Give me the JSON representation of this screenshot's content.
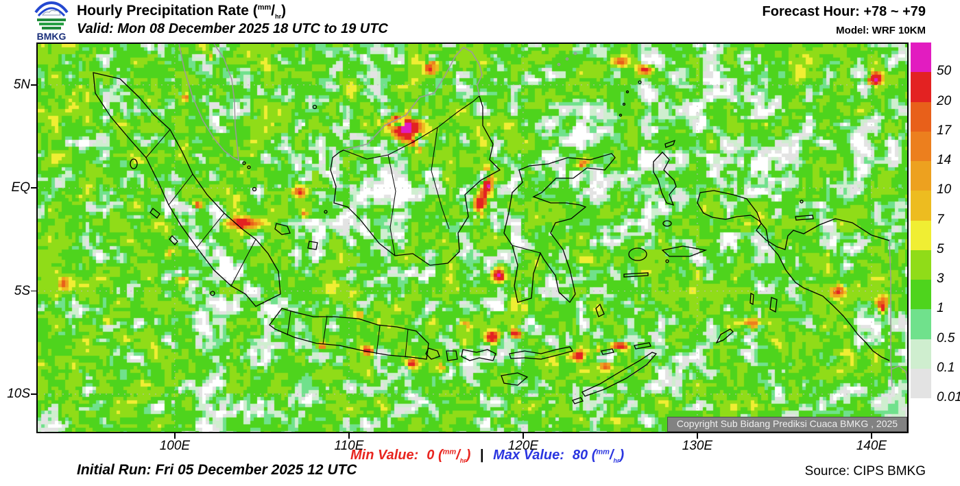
{
  "header": {
    "logo_text": "BMKG",
    "title": "Hourly Precipitation Rate",
    "valid": "Valid: Mon 08 December 2025 18 UTC to 19 UTC",
    "forecast_hour": "Forecast Hour: +78 ~ +79",
    "model": "Model: WRF 10KM"
  },
  "unit": {
    "open": "(",
    "num": "mm",
    "slash": "/",
    "den": "hr",
    "close": ")"
  },
  "map": {
    "lon_range": [
      92.13,
      142.05
    ],
    "lat_range": [
      -11.83,
      6.99
    ],
    "x_ticks": [
      {
        "label": "100E",
        "lon": 100
      },
      {
        "label": "110E",
        "lon": 110
      },
      {
        "label": "120E",
        "lon": 120
      },
      {
        "label": "130E",
        "lon": 130
      },
      {
        "label": "140E",
        "lon": 140
      }
    ],
    "y_ticks": [
      {
        "label": "5N",
        "lat": 5
      },
      {
        "label": "EQ",
        "lat": 0
      },
      {
        "label": "5S",
        "lat": -5
      },
      {
        "label": "10S",
        "lat": -10
      }
    ],
    "copyright": "Copyright Sub Bidang Prediksi Cuaca BMKG , 2025",
    "precip_field": {
      "seed": 11,
      "cell": 5,
      "zones": [
        [
          245,
          176,
          170,
          0.85
        ],
        [
          125,
          86,
          110,
          0.7
        ],
        [
          35,
          316,
          150,
          0.9
        ],
        [
          95,
          406,
          120,
          0.8
        ],
        [
          525,
          121,
          120,
          0.9
        ],
        [
          425,
          46,
          90,
          0.65
        ],
        [
          505,
          336,
          140,
          0.8
        ],
        [
          605,
          356,
          120,
          0.8
        ],
        [
          395,
          216,
          110,
          0.75
        ],
        [
          795,
          366,
          170,
          0.85
        ],
        [
          895,
          416,
          130,
          0.8
        ],
        [
          945,
          406,
          110,
          0.8
        ],
        [
          735,
          176,
          110,
          0.65
        ],
        [
          1185,
          86,
          150,
          0.9
        ],
        [
          1095,
          26,
          100,
          0.55
        ],
        [
          1205,
          376,
          100,
          0.8
        ],
        [
          1075,
          491,
          120,
          0.55
        ],
        [
          585,
          456,
          110,
          0.55
        ],
        [
          825,
          86,
          100,
          0.6
        ],
        [
          45,
          36,
          90,
          0.65
        ],
        [
          305,
          116,
          90,
          0.5
        ],
        [
          645,
          36,
          80,
          0.6
        ],
        [
          925,
          496,
          110,
          0.5
        ],
        [
          365,
          496,
          130,
          0.45
        ],
        [
          195,
          526,
          120,
          0.5
        ],
        [
          945,
          316,
          90,
          0.55
        ]
      ],
      "suppress": [
        [
          520,
          231,
          55,
          0.35
        ],
        [
          835,
          166,
          75,
          0.3
        ],
        [
          1045,
          186,
          90,
          0.25
        ],
        [
          285,
          416,
          70,
          0.25
        ]
      ],
      "cores": [
        [
          537,
          122,
          16,
          14,
          0.44
        ],
        [
          511,
          108,
          10,
          8,
          0.3
        ],
        [
          549,
          150,
          8,
          8,
          0.28
        ],
        [
          573,
          34,
          7,
          7,
          0.36
        ],
        [
          655,
          204,
          6,
          16,
          0.4
        ],
        [
          645,
          236,
          6,
          10,
          0.34
        ],
        [
          672,
          338,
          7,
          7,
          0.36
        ],
        [
          663,
          428,
          7,
          6,
          0.38
        ],
        [
          697,
          425,
          7,
          6,
          0.36
        ],
        [
          850,
          441,
          8,
          6,
          0.38
        ],
        [
          812,
          448,
          6,
          5,
          0.3
        ],
        [
          788,
          456,
          6,
          5,
          0.32
        ],
        [
          829,
          469,
          6,
          5,
          0.28
        ],
        [
          1235,
          381,
          9,
          7,
          0.38
        ],
        [
          1167,
          361,
          9,
          6,
          0.24
        ],
        [
          1220,
          51,
          8,
          7,
          0.34
        ],
        [
          297,
          261,
          15,
          6,
          0.33
        ],
        [
          232,
          236,
          6,
          5,
          0.3
        ],
        [
          886,
          36,
          8,
          6,
          0.3
        ],
        [
          215,
          76,
          8,
          6,
          0.2
        ],
        [
          247,
          22,
          7,
          6,
          0.28
        ],
        [
          383,
          216,
          8,
          7,
          0.22
        ],
        [
          387,
          251,
          6,
          6,
          0.28
        ],
        [
          475,
          394,
          8,
          5,
          0.2
        ],
        [
          95,
          406,
          9,
          5,
          0.18
        ],
        [
          195,
          306,
          7,
          5,
          0.2
        ],
        [
          211,
          342,
          6,
          5,
          0.18
        ],
        [
          1201,
          126,
          8,
          6,
          0.18
        ],
        [
          625,
          411,
          7,
          5,
          0.2
        ],
        [
          415,
          443,
          6,
          5,
          0.2
        ],
        [
          482,
          447,
          6,
          5,
          0.26
        ],
        [
          545,
          466,
          6,
          5,
          0.3
        ],
        [
          595,
          470,
          6,
          5,
          0.26
        ],
        [
          797,
          178,
          7,
          5,
          0.28
        ],
        [
          1045,
          408,
          18,
          6,
          0.2
        ],
        [
          850,
          26,
          7,
          6,
          0.22
        ],
        [
          40,
          351,
          7,
          6,
          0.2
        ]
      ]
    }
  },
  "colorbar": {
    "levels_top_to_bottom": [
      "50",
      "20",
      "17",
      "14",
      "10",
      "7",
      "5",
      "3",
      "1",
      "0.5",
      "0.1",
      "0.01"
    ],
    "colors_top_to_bottom": [
      "#e21cc0",
      "#e32222",
      "#e8601a",
      "#ec7f1e",
      "#eda11f",
      "#edbc20",
      "#f0ee33",
      "#90dc18",
      "#4ed41d",
      "#70e18c",
      "#cfeecf",
      "#e3e3e3"
    ]
  },
  "footer": {
    "min_label": "Min Value:",
    "min_value": "0",
    "separator": "|",
    "max_label": "Max Value:",
    "max_value": "80",
    "initial_run": "Initial Run: Fri 05 December 2025 12 UTC",
    "source": "Source: CIPS BMKG"
  },
  "colors": {
    "min_red": "#e8251f",
    "max_blue": "#2a35e0",
    "grid": "#bdbdbd",
    "foreign_coast": "#9a9a9a",
    "coast_black": "#000000"
  }
}
